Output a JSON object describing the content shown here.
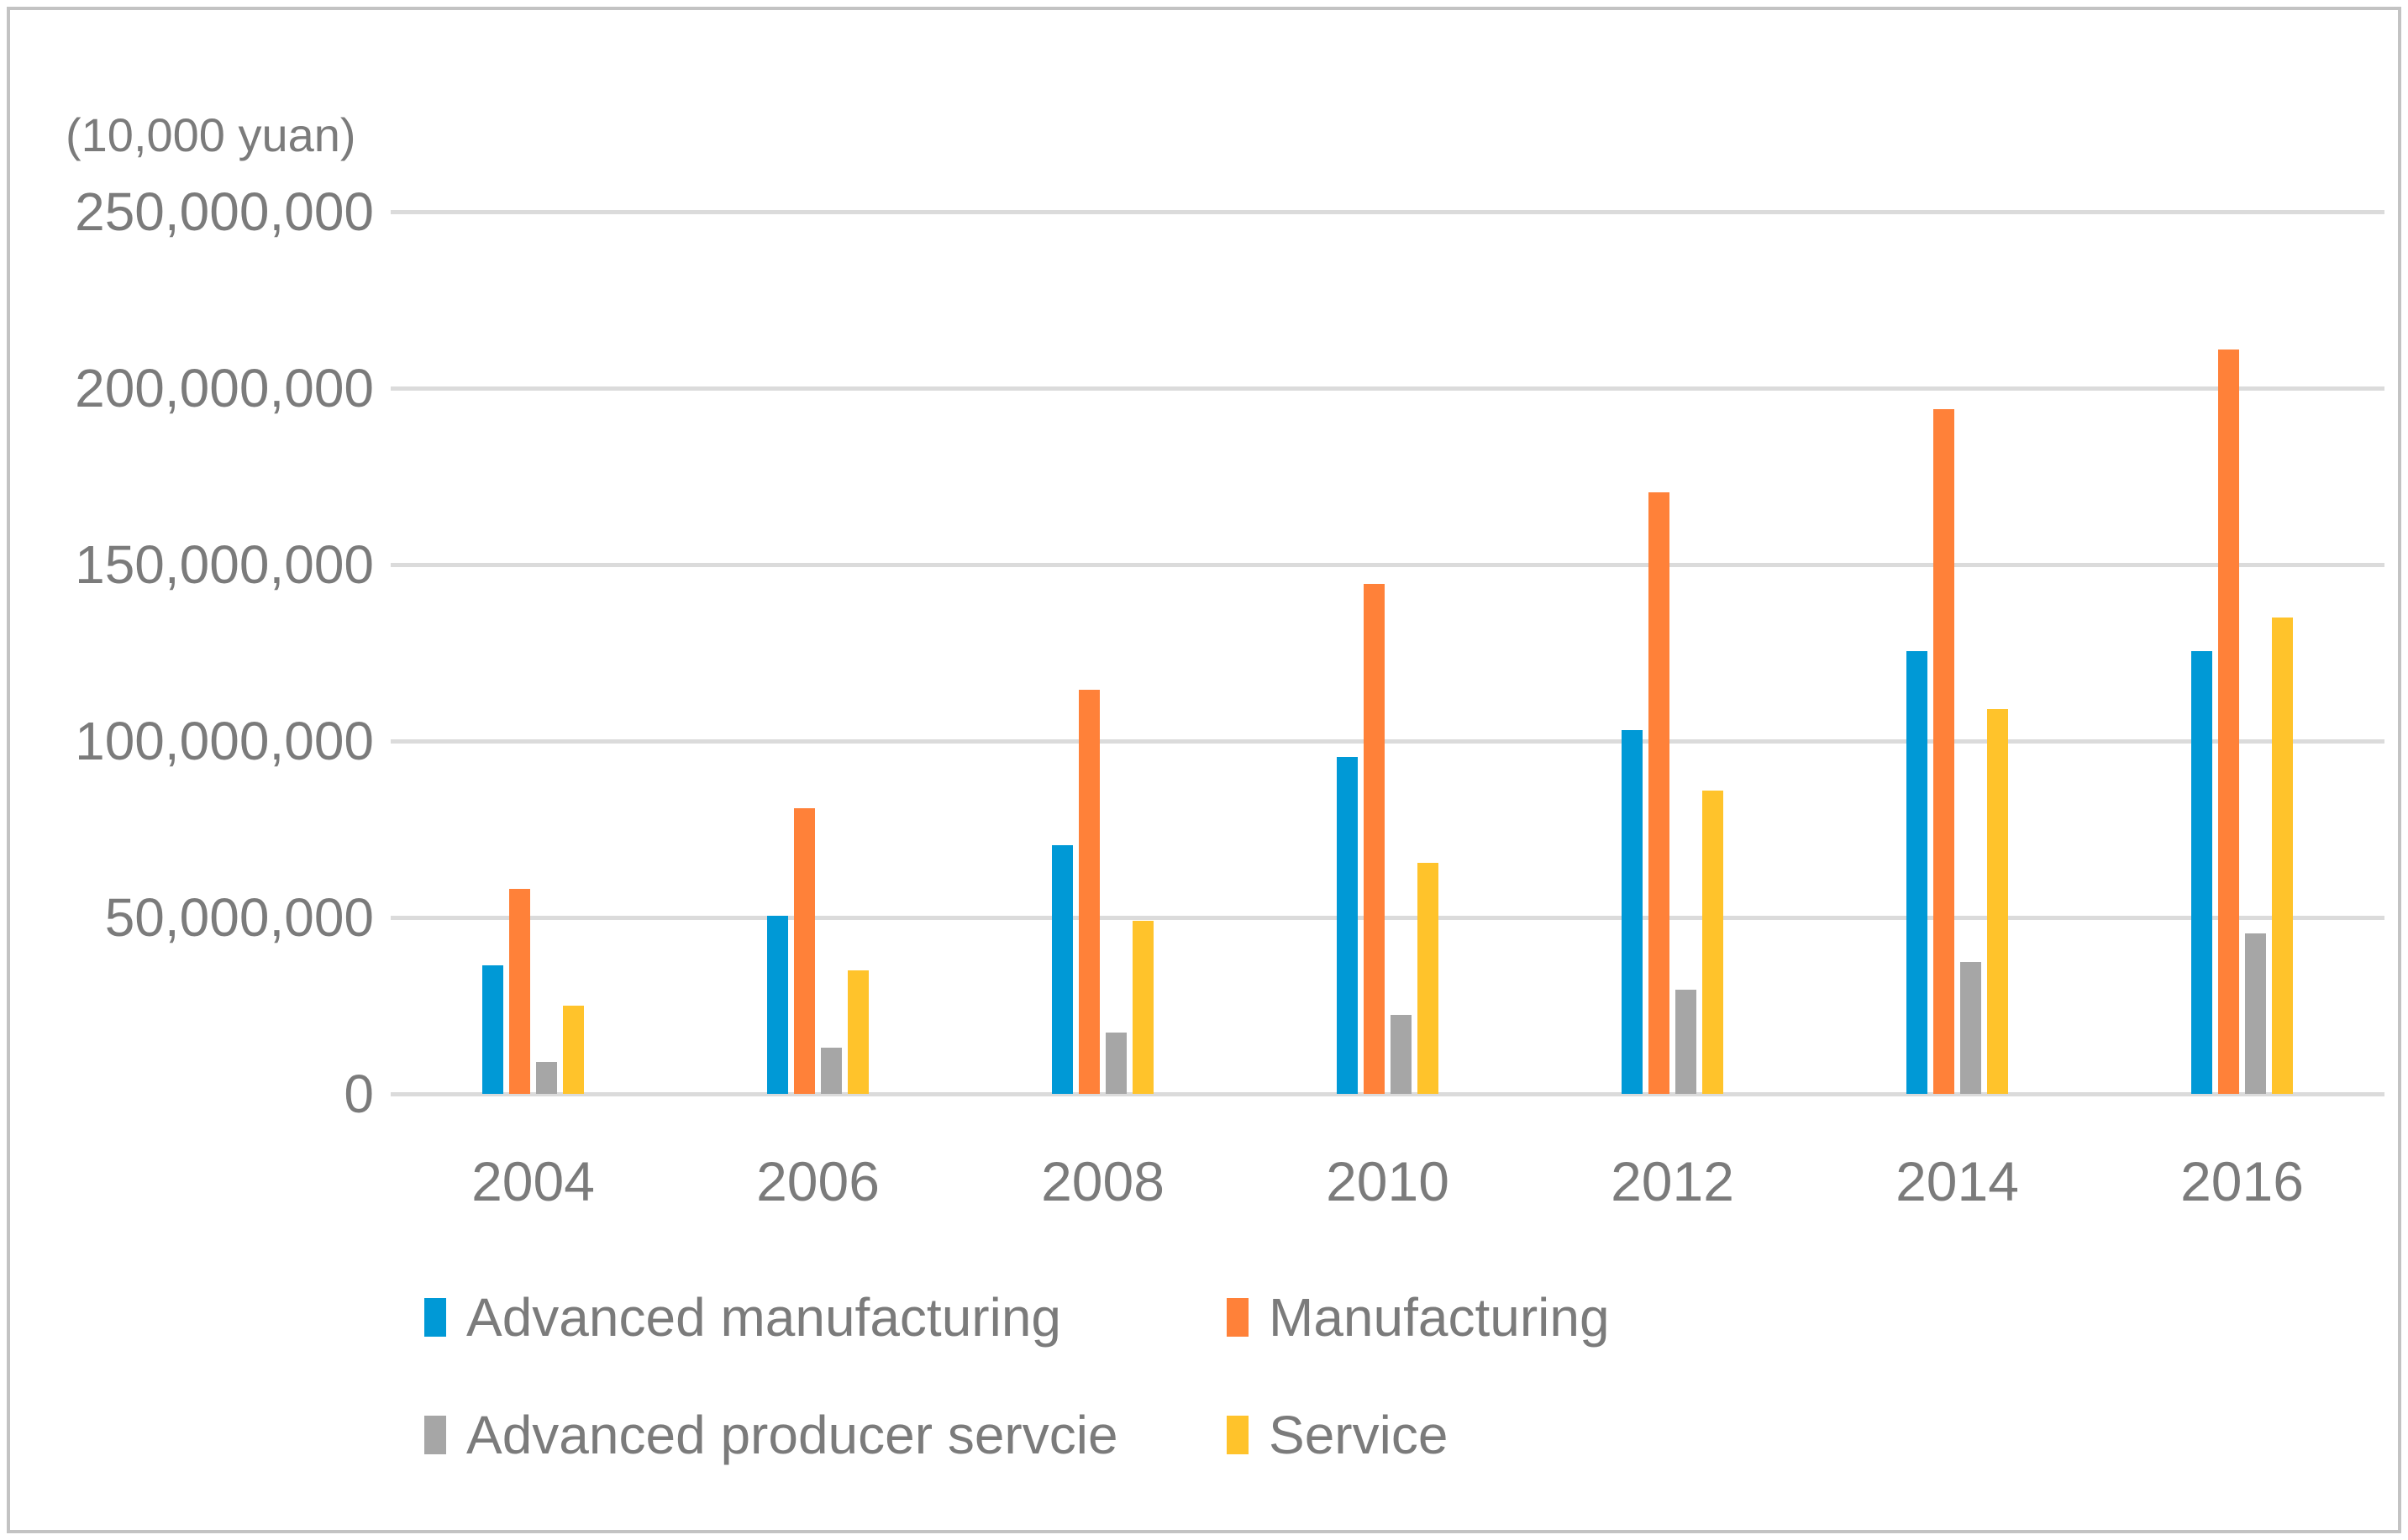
{
  "chart_data": {
    "type": "bar",
    "title": "",
    "unit_label": "(10,000 yuan)",
    "categories": [
      "2004",
      "2006",
      "2008",
      "2010",
      "2012",
      "2014",
      "2016"
    ],
    "series": [
      {
        "name": "Advanced manufacturing",
        "color": "#0099D6",
        "values": [
          36500000,
          50500000,
          70500000,
          95500000,
          103000000,
          125500000,
          125500000
        ]
      },
      {
        "name": "Manufacturing",
        "color": "#FF8139",
        "values": [
          58000000,
          81000000,
          114500000,
          144500000,
          170500000,
          194000000,
          211000000
        ]
      },
      {
        "name": "Advanced producer servcie",
        "color": "#A6A6A6",
        "values": [
          9000000,
          13000000,
          17500000,
          22500000,
          29500000,
          37500000,
          45500000
        ]
      },
      {
        "name": "Service",
        "color": "#FFC32B",
        "values": [
          25000000,
          35000000,
          49000000,
          65500000,
          86000000,
          109000000,
          135000000
        ]
      }
    ],
    "ylim": [
      0,
      250000000
    ],
    "y_tick_step": 50000000,
    "y_tick_labels": [
      "0",
      "50,000,000",
      "100,000,000",
      "150,000,000",
      "200,000,000",
      "250,000,000"
    ],
    "grid": "horizontal",
    "legend_position": "bottom-left-two-columns",
    "colors": {
      "gridline": "#DBDBDB",
      "axis_text": "#7B7B7B",
      "frame_border": "#C3C3C3",
      "background": "#FFFFFF"
    }
  }
}
